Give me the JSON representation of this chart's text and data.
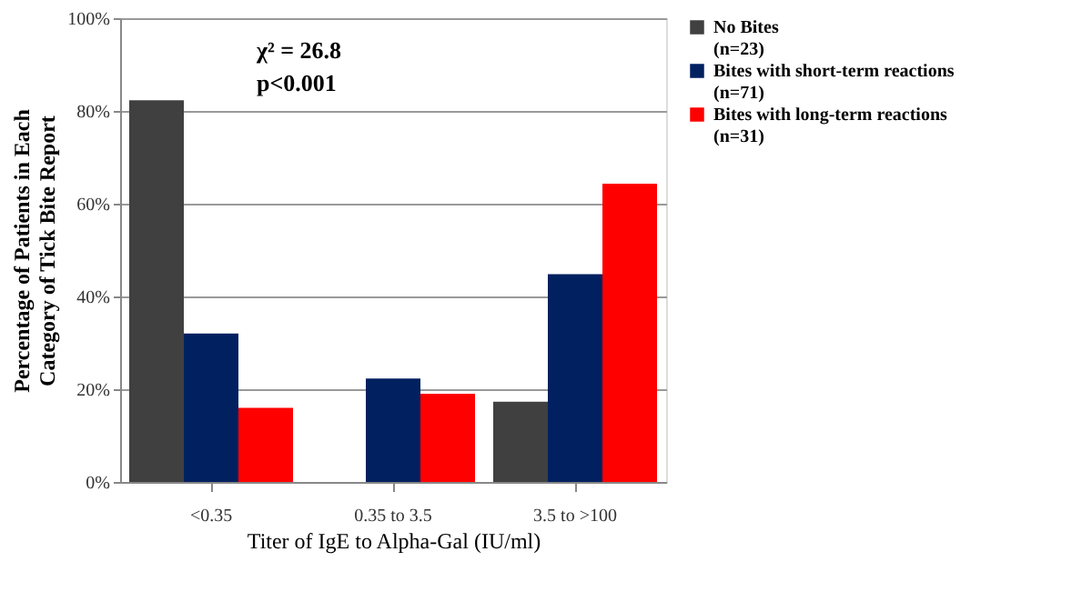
{
  "chart_data": {
    "type": "bar",
    "xlabel": "Titer of IgE to Alpha-Gal (IU/ml)",
    "ylabel": "Percentage of Patients in Each Category of Tick Bite Report",
    "categories": [
      "<0.35",
      "0.35 to 3.5",
      "3.5 to >100"
    ],
    "series": [
      {
        "name": "No Bites (n=23)",
        "color": "#404040",
        "values": [
          82.3,
          0,
          17.3
        ]
      },
      {
        "name": "Bites with short-term reactions (n=71)",
        "color": "#002060",
        "values": [
          32.0,
          22.3,
          44.8
        ]
      },
      {
        "name": "Bites with long-term reactions (n=31)",
        "color": "#ff0000",
        "values": [
          16.0,
          19.0,
          64.3
        ]
      }
    ],
    "ylim": [
      0,
      100
    ],
    "yticks": [
      {
        "value": 0,
        "label": "0%"
      },
      {
        "value": 20,
        "label": "20%"
      },
      {
        "value": 40,
        "label": "40%"
      },
      {
        "value": 60,
        "label": "60%"
      },
      {
        "value": 80,
        "label": "80%"
      },
      {
        "value": 100,
        "label": "100%"
      }
    ],
    "grid": "y",
    "legend": "right",
    "annotations": [
      "χ² = 26.8",
      "p<0.001"
    ]
  }
}
